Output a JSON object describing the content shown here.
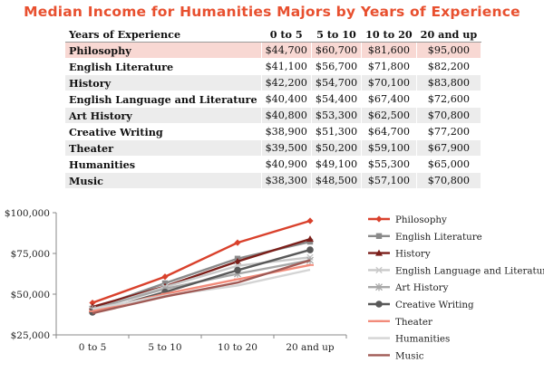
{
  "title": "Median Income for Humanities Majors by Years of Experience",
  "table": {
    "header": [
      "Years of Experience",
      "0 to 5",
      "5 to 10",
      "10 to 20",
      "20 and up"
    ],
    "rows": [
      {
        "label": "Philosophy",
        "cells": [
          "$44,700",
          "$60,700",
          "$81,600",
          "$95,000"
        ]
      },
      {
        "label": "English Literature",
        "cells": [
          "$41,100",
          "$56,700",
          "$71,800",
          "$82,200"
        ]
      },
      {
        "label": "History",
        "cells": [
          "$42,200",
          "$54,700",
          "$70,100",
          "$83,800"
        ]
      },
      {
        "label": "English Language and Literature",
        "cells": [
          "$40,400",
          "$54,400",
          "$67,400",
          "$72,600"
        ]
      },
      {
        "label": "Art History",
        "cells": [
          "$40,800",
          "$53,300",
          "$62,500",
          "$70,800"
        ]
      },
      {
        "label": "Creative Writing",
        "cells": [
          "$38,900",
          "$51,300",
          "$64,700",
          "$77,200"
        ]
      },
      {
        "label": "Theater",
        "cells": [
          "$39,500",
          "$50,200",
          "$59,100",
          "$67,900"
        ]
      },
      {
        "label": "Humanities",
        "cells": [
          "$40,900",
          "$49,100",
          "$55,300",
          "$65,000"
        ]
      },
      {
        "label": "Music",
        "cells": [
          "$38,300",
          "$48,500",
          "$57,100",
          "$70,800"
        ]
      }
    ]
  },
  "chart_data": {
    "type": "line",
    "title": "Median Income for Humanities Majors by Years of Experience",
    "categories": [
      "0 to 5",
      "5 to 10",
      "10 to 20",
      "20 and up"
    ],
    "ylim": [
      25000,
      100000
    ],
    "yticks": [
      25000,
      50000,
      75000,
      100000
    ],
    "ytick_labels": [
      "$25,000",
      "$50,000",
      "$75,000",
      "$100,000"
    ],
    "grid": false,
    "legend_position": "right",
    "series": [
      {
        "name": "Philosophy",
        "values": [
          44700,
          60700,
          81600,
          95000
        ],
        "color": "#d9412c",
        "marker": "diamond"
      },
      {
        "name": "English Literature",
        "values": [
          41100,
          56700,
          71800,
          82200
        ],
        "color": "#8a8a8a",
        "marker": "square"
      },
      {
        "name": "History",
        "values": [
          42200,
          54700,
          70100,
          83800
        ],
        "color": "#7b1f1a",
        "marker": "triangle"
      },
      {
        "name": "English Language and Literature",
        "values": [
          40400,
          54400,
          67400,
          72600
        ],
        "color": "#c9c9c9",
        "marker": "x"
      },
      {
        "name": "Art History",
        "values": [
          40800,
          53300,
          62500,
          70800
        ],
        "color": "#a8a8a8",
        "marker": "asterisk"
      },
      {
        "name": "Creative Writing",
        "values": [
          38900,
          51300,
          64700,
          77200
        ],
        "color": "#595959",
        "marker": "circle"
      },
      {
        "name": "Theater",
        "values": [
          39500,
          50200,
          59100,
          67900
        ],
        "color": "#f28b7a",
        "marker": "bar"
      },
      {
        "name": "Humanities",
        "values": [
          40900,
          49100,
          55300,
          65000
        ],
        "color": "#d4d4d4",
        "marker": "none"
      },
      {
        "name": "Music",
        "values": [
          38300,
          48500,
          57100,
          70800
        ],
        "color": "#a05a55",
        "marker": "none"
      }
    ]
  }
}
